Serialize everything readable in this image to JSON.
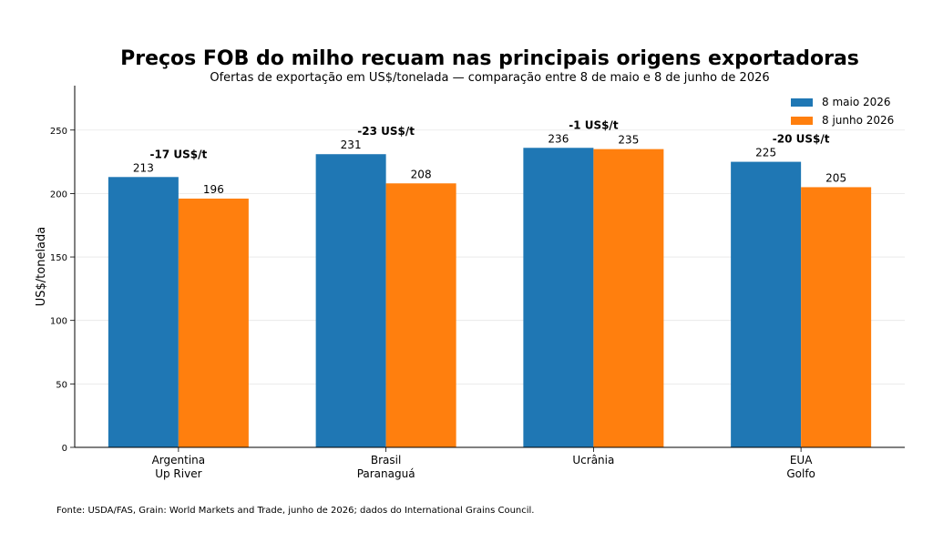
{
  "title": "Preços FOB do milho recuam nas principais origens exportadoras",
  "subtitle": "Ofertas de exportação em US$/tonelada — comparação entre 8 de maio e 8 de junho de 2026",
  "source": "Fonte: USDA/FAS, Grain: World Markets and Trade, junho de 2026; dados do International Grains Council.",
  "chart_data": {
    "type": "bar",
    "categories": [
      [
        "Argentina",
        "Up River"
      ],
      [
        "Brasil",
        "Paranaguá"
      ],
      [
        "Ucrânia"
      ],
      [
        "EUA",
        "Golfo"
      ]
    ],
    "series": [
      {
        "name": "8 maio 2026",
        "color": "#1f77b4",
        "values": [
          213,
          231,
          236,
          225
        ]
      },
      {
        "name": "8 junho 2026",
        "color": "#ff7f0e",
        "values": [
          196,
          208,
          235,
          205
        ]
      }
    ],
    "value_labels": [
      "213",
      "196",
      "231",
      "208",
      "236",
      "235",
      "225",
      "205"
    ],
    "annotations": [
      "-17 US$/t",
      "-23 US$/t",
      "-1 US$/t",
      "-20 US$/t"
    ],
    "ylabel": "US$/tonelada",
    "ylim": [
      0,
      285
    ],
    "yticks": [
      0,
      50,
      100,
      150,
      200,
      250
    ],
    "ytick_labels": [
      "0",
      "50",
      "100",
      "150",
      "200",
      "250"
    ],
    "grid": true,
    "legend": "top-right"
  }
}
